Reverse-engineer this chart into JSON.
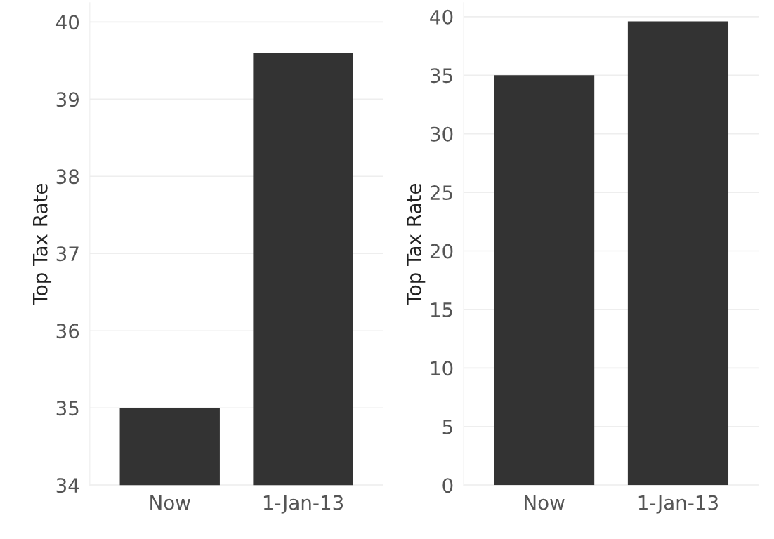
{
  "chart_data": [
    {
      "type": "bar",
      "ylabel": "Top Tax Rate",
      "categories": [
        "Now",
        "1-Jan-13"
      ],
      "values": [
        35,
        39.6
      ],
      "color": "#333333",
      "ylim": [
        34,
        40.25
      ],
      "yticks": [
        34,
        35,
        36,
        37,
        38,
        39,
        40
      ],
      "grid": "y"
    },
    {
      "type": "bar",
      "ylabel": "Top Tax Rate",
      "categories": [
        "Now",
        "1-Jan-13"
      ],
      "values": [
        35,
        39.6
      ],
      "color": "#333333",
      "ylim": [
        0,
        41.2
      ],
      "yticks": [
        0,
        5,
        10,
        15,
        20,
        25,
        30,
        35,
        40
      ],
      "grid": "y"
    }
  ]
}
